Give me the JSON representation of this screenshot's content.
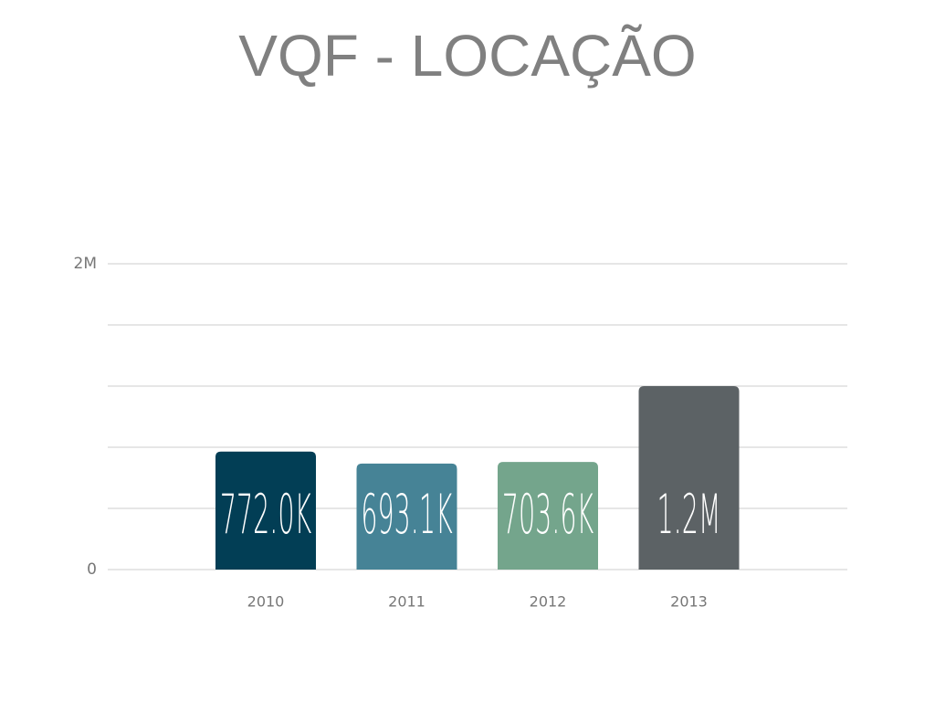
{
  "chart_data": {
    "type": "bar",
    "title": "VQF - LOCAÇÃO",
    "categories": [
      "2010",
      "2011",
      "2012",
      "2013"
    ],
    "values": [
      772000,
      693100,
      703600,
      1200000
    ],
    "value_labels": [
      "772.0K",
      "693.1K",
      "703.6K",
      "1.2M"
    ],
    "colors": [
      "#023e55",
      "#468396",
      "#74a58c",
      "#5c6265"
    ],
    "ylim": [
      0,
      2000000
    ],
    "yticks": [
      {
        "value": 0,
        "label": "0"
      },
      {
        "value": 2000000,
        "label": "2M"
      }
    ],
    "ygrid": [
      0,
      400000,
      800000,
      1200000,
      1600000,
      2000000
    ],
    "grid": true
  }
}
